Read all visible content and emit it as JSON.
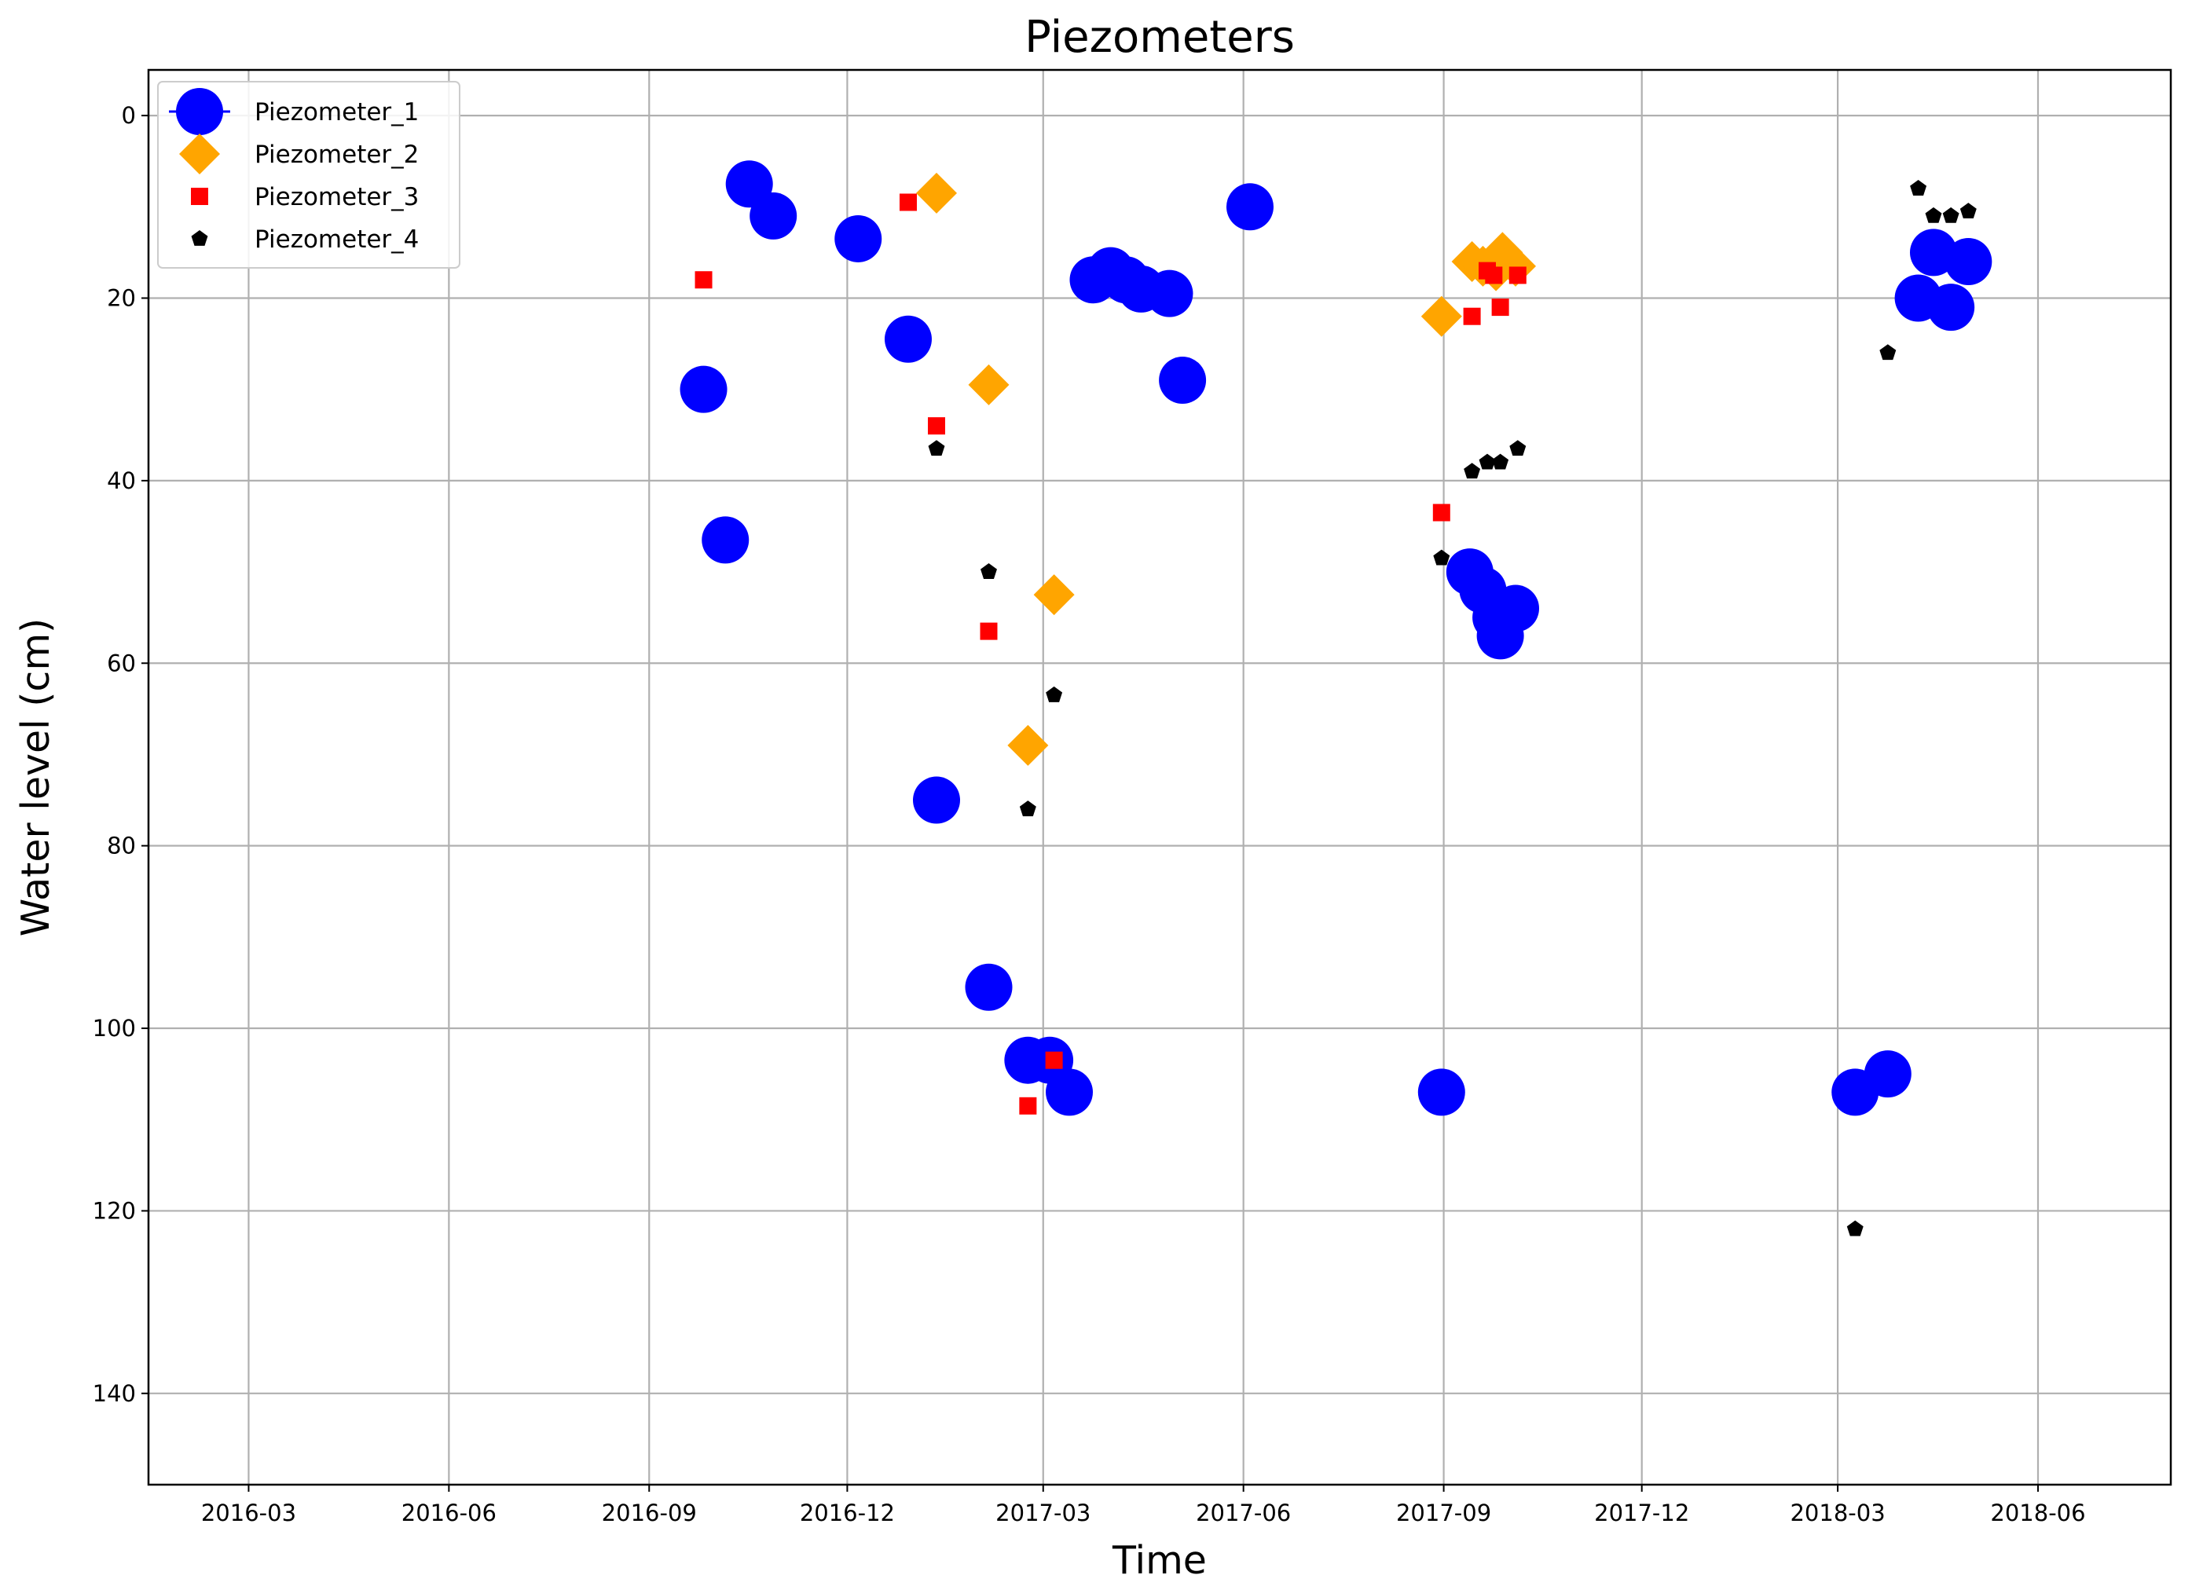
{
  "chart_data": {
    "type": "scatter",
    "title": "Piezometers",
    "xlabel": "Time",
    "ylabel": "Water level (cm)",
    "x_scale": "date",
    "xlim": [
      "2016-01-15",
      "2018-08-01"
    ],
    "x_ticks": [
      "2016-03-01",
      "2016-06-01",
      "2016-09-01",
      "2016-12-01",
      "2017-03-01",
      "2017-06-01",
      "2017-09-01",
      "2017-12-01",
      "2018-03-01",
      "2018-06-01"
    ],
    "x_tick_labels": [
      "2016-03",
      "2016-06",
      "2016-09",
      "2016-12",
      "2017-03",
      "2017-06",
      "2017-09",
      "2017-12",
      "2018-03",
      "2018-06"
    ],
    "ylim": [
      150,
      -5
    ],
    "y_inverted": true,
    "y_ticks": [
      0,
      20,
      40,
      60,
      80,
      100,
      120,
      140
    ],
    "y_tick_labels": [
      "0",
      "20",
      "40",
      "60",
      "80",
      "100",
      "120",
      "140"
    ],
    "grid": true,
    "legend_position": "top-left",
    "series": [
      {
        "name": "Piezometer_1",
        "marker": "circle",
        "color": "#0000ff",
        "x": [
          "2016-09-26",
          "2016-10-06",
          "2016-10-17",
          "2016-10-28",
          "2016-12-06",
          "2016-12-29",
          "2017-01-11",
          "2017-02-04",
          "2017-02-22",
          "2017-03-04",
          "2017-03-13",
          "2017-03-24",
          "2017-04-01",
          "2017-04-08",
          "2017-04-15",
          "2017-04-28",
          "2017-05-04",
          "2017-06-04",
          "2017-08-31",
          "2017-09-13",
          "2017-09-19",
          "2017-09-25",
          "2017-09-27",
          "2017-10-04",
          "2018-03-09",
          "2018-03-24",
          "2018-04-07",
          "2018-04-14",
          "2018-04-22",
          "2018-04-30"
        ],
        "y": [
          30,
          46.5,
          7.5,
          11,
          13.5,
          24.5,
          75,
          95.5,
          103.5,
          103.5,
          107,
          18,
          17,
          18,
          19,
          19.5,
          29,
          10,
          107,
          50,
          52,
          55,
          57,
          54,
          107,
          105,
          20,
          15,
          21,
          16
        ]
      },
      {
        "name": "Piezometer_2",
        "marker": "diamond",
        "color": "#ffa500",
        "x": [
          "2017-01-11",
          "2017-02-04",
          "2017-02-22",
          "2017-03-06",
          "2017-08-31",
          "2017-09-14",
          "2017-09-19",
          "2017-09-25",
          "2017-09-28",
          "2017-10-04"
        ],
        "y": [
          8.5,
          29.5,
          69,
          52.5,
          22,
          16,
          16.5,
          17,
          15,
          16.5
        ]
      },
      {
        "name": "Piezometer_3",
        "marker": "square",
        "color": "#ff0000",
        "x": [
          "2016-09-26",
          "2016-12-29",
          "2017-01-11",
          "2017-02-04",
          "2017-02-22",
          "2017-03-06",
          "2017-08-31",
          "2017-09-14",
          "2017-09-21",
          "2017-09-24",
          "2017-09-27",
          "2017-10-05"
        ],
        "y": [
          18,
          9.5,
          34,
          56.5,
          108.5,
          103.5,
          43.5,
          22,
          17,
          17.5,
          21,
          17.5
        ],
        "note": ""
      },
      {
        "name": "Piezometer_4",
        "marker": "pentagon",
        "color": "#000000",
        "x": [
          "2017-01-11",
          "2017-02-04",
          "2017-02-22",
          "2017-03-06",
          "2017-08-31",
          "2017-09-14",
          "2017-09-21",
          "2017-09-27",
          "2017-10-05",
          "2018-03-09",
          "2018-03-24",
          "2018-04-07",
          "2018-04-14",
          "2018-04-22",
          "2018-04-30"
        ],
        "y": [
          36.5,
          50,
          76,
          63.5,
          48.5,
          39,
          38,
          38,
          36.5,
          122,
          26,
          8,
          11,
          11,
          10.5
        ]
      }
    ]
  }
}
